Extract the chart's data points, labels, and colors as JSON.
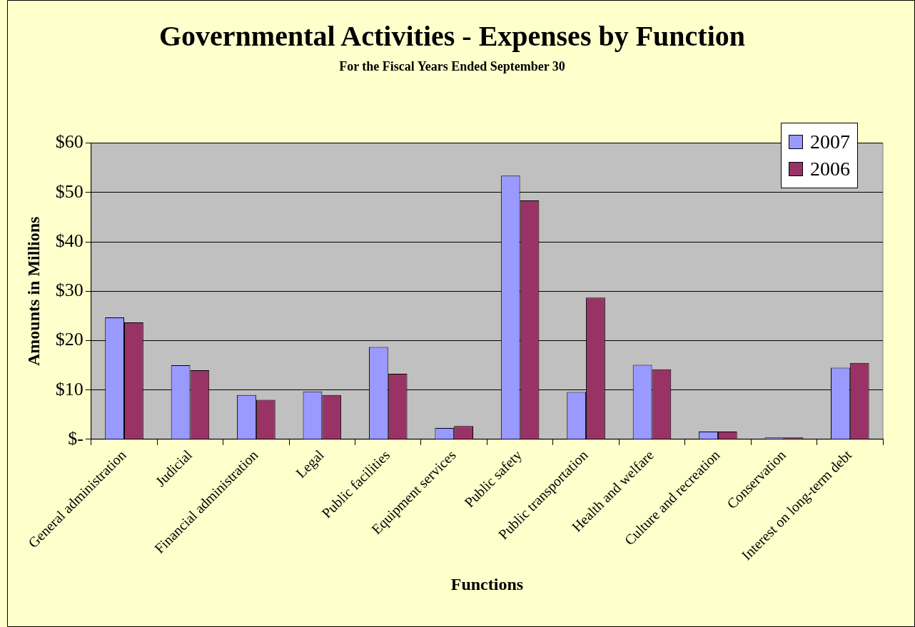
{
  "chart_data": {
    "type": "bar",
    "title": "Governmental Activities - Expenses by Function",
    "subtitle": "For the Fiscal Years Ended September 30",
    "xlabel": "Functions",
    "ylabel": "Amounts in Millions",
    "categories": [
      "General administration",
      "Judicial",
      "Financial administration",
      "Legal",
      "Public facilities",
      "Equipment services",
      "Public safety",
      "Public transportation",
      "Health and welfare",
      "Culture and recreation",
      "Conservation",
      "Interest on long-term debt"
    ],
    "series": [
      {
        "name": "2007",
        "color": "#9999ff",
        "values": [
          24.7,
          15.0,
          9.0,
          9.7,
          18.7,
          2.3,
          53.4,
          9.6,
          15.1,
          1.6,
          0.4,
          14.5
        ]
      },
      {
        "name": "2006",
        "color": "#993366",
        "values": [
          23.7,
          14.0,
          8.0,
          9.0,
          13.3,
          2.7,
          48.4,
          28.7,
          14.2,
          1.6,
          0.4,
          15.5
        ]
      }
    ],
    "ylim": [
      0,
      60
    ],
    "yticks": [
      {
        "value": 0,
        "label": "$-"
      },
      {
        "value": 10,
        "label": "$10"
      },
      {
        "value": 20,
        "label": "$20"
      },
      {
        "value": 30,
        "label": "$30"
      },
      {
        "value": 40,
        "label": "$40"
      },
      {
        "value": 50,
        "label": "$50"
      },
      {
        "value": 60,
        "label": "$60"
      }
    ],
    "grid": "y",
    "legend": "top right"
  }
}
